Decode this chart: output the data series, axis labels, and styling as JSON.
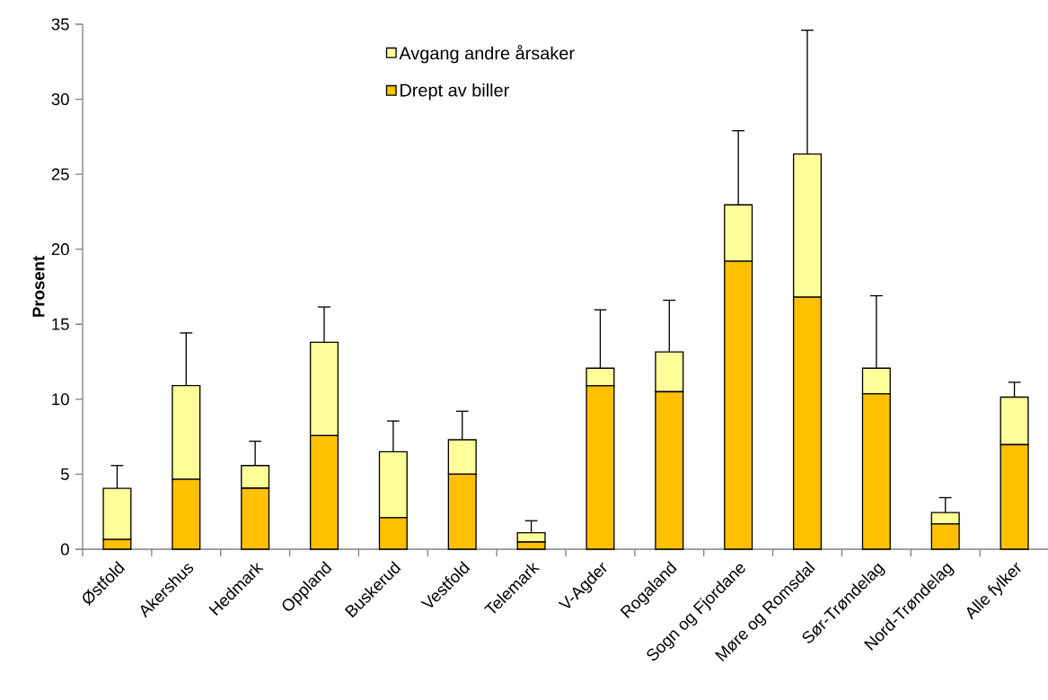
{
  "chart_data": {
    "type": "bar",
    "stacked": true,
    "ylabel": "**Prosent**",
    "categories": [
      "Østfold",
      "Akershus",
      "Hedmark",
      "Oppland",
      "Buskerud",
      "Vestfold",
      "Telemark",
      "V-Agder",
      "Rogaland",
      "Sogn og Fjordane",
      "Møre og Romsdal",
      "Sør-Trøndelag",
      "Nord-Trøndelag",
      "Alle fylker"
    ],
    "series": [
      {
        "name": "Drept av biller",
        "color": "#ffc000",
        "values": [
          0.65,
          4.66,
          4.07,
          7.58,
          2.1,
          5.0,
          0.48,
          10.9,
          10.5,
          19.2,
          16.8,
          10.36,
          1.68,
          6.97
        ]
      },
      {
        "name": "Avgang andre årsaker",
        "color": "#ffff99",
        "values": [
          3.41,
          6.25,
          1.51,
          6.22,
          4.4,
          2.3,
          0.62,
          1.17,
          2.65,
          3.76,
          9.55,
          1.71,
          0.77,
          3.17
        ],
        "errors": [
          [
            4.06,
            5.58
          ],
          [
            10.91,
            14.42
          ],
          [
            5.58,
            7.2
          ],
          [
            13.8,
            16.15
          ],
          [
            6.5,
            8.55
          ],
          [
            7.3,
            9.2
          ],
          [
            1.1,
            1.9
          ],
          [
            12.07,
            15.96
          ],
          [
            13.15,
            16.6
          ],
          [
            22.96,
            27.9
          ],
          [
            26.35,
            34.6
          ],
          [
            12.07,
            16.9
          ],
          [
            2.45,
            3.44
          ],
          [
            10.14,
            11.13
          ]
        ]
      }
    ],
    "ylim": [
      0,
      35
    ],
    "yticks": [
      0,
      5,
      10,
      15,
      20,
      25,
      30,
      35
    ],
    "legend": "top",
    "grid": false
  }
}
